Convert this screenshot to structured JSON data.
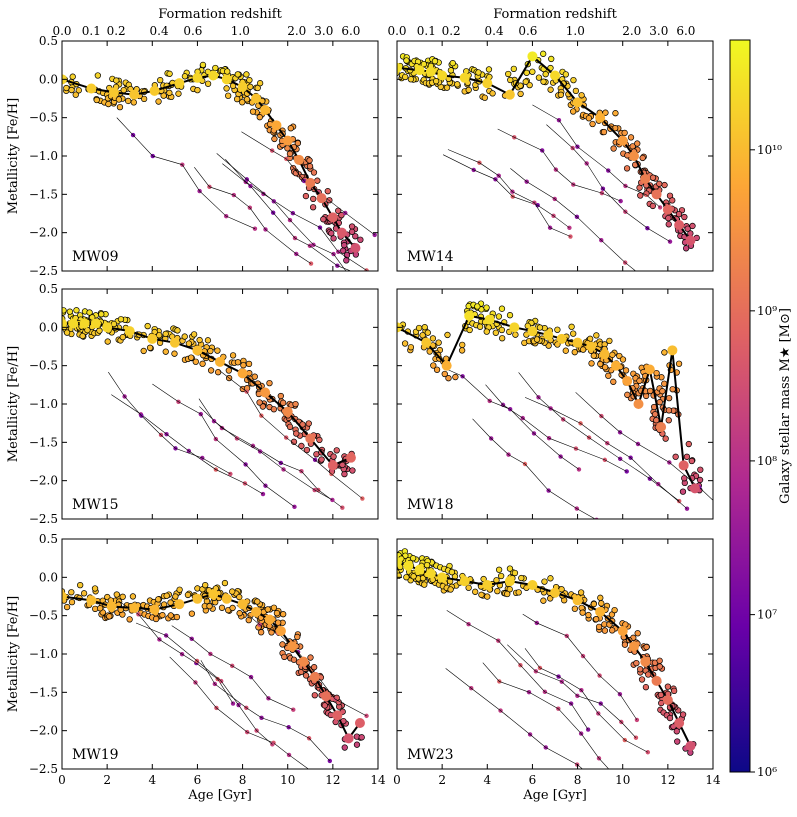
{
  "chart_data": [
    {
      "type": "scatter",
      "panel": "MW09",
      "label": "MW09",
      "xlim": [
        0,
        14
      ],
      "ylim": [
        -2.5,
        0.5
      ],
      "x": [
        0,
        1.3,
        2.3,
        3.2,
        4.1,
        5.2,
        6.0,
        6.7,
        7.3,
        8.0,
        8.6,
        9.0,
        9.5,
        10.0,
        10.5,
        11.0,
        11.5,
        12.0,
        12.4,
        13.0
      ],
      "y": [
        0.0,
        -0.12,
        -0.17,
        -0.2,
        -0.15,
        -0.05,
        0.02,
        0.05,
        0.0,
        -0.1,
        -0.25,
        -0.4,
        -0.6,
        -0.8,
        -1.05,
        -1.35,
        -1.55,
        -1.8,
        -2.0,
        -2.2
      ],
      "ylabel": "Metallicity [Fe/H]",
      "xlabel": "",
      "top_axis": "Formation redshift"
    },
    {
      "type": "scatter",
      "panel": "MW14",
      "label": "MW14",
      "xlim": [
        0,
        14
      ],
      "ylim": [
        -2.5,
        0.5
      ],
      "x": [
        0,
        1.0,
        1.5,
        2.0,
        3.0,
        4.0,
        5.0,
        6.0,
        7.0,
        8.0,
        9.0,
        10.0,
        10.5,
        11.0,
        11.5,
        12.0,
        12.5,
        13.0
      ],
      "y": [
        0.15,
        0.12,
        0.1,
        0.05,
        0.02,
        -0.05,
        -0.2,
        0.3,
        0.05,
        -0.3,
        -0.5,
        -0.8,
        -1.0,
        -1.3,
        -1.5,
        -1.7,
        -1.9,
        -2.1
      ],
      "ylabel": "",
      "xlabel": "",
      "top_axis": "Formation redshift"
    },
    {
      "type": "scatter",
      "panel": "MW15",
      "label": "MW15",
      "xlim": [
        0,
        14
      ],
      "ylim": [
        -2.5,
        0.5
      ],
      "x": [
        0,
        0.5,
        1.0,
        1.5,
        2.0,
        3.0,
        4.0,
        5.0,
        6.0,
        7.0,
        8.0,
        9.0,
        10.0,
        11.0,
        12.0,
        12.8
      ],
      "y": [
        0.05,
        0.05,
        0.05,
        0.05,
        0.0,
        -0.05,
        -0.15,
        -0.2,
        -0.3,
        -0.45,
        -0.6,
        -0.85,
        -1.1,
        -1.45,
        -1.8,
        -1.7
      ],
      "ylabel": "Metallicity [Fe/H]",
      "xlabel": "",
      "top_axis": ""
    },
    {
      "type": "scatter",
      "panel": "MW18",
      "label": "MW18",
      "xlim": [
        0,
        14
      ],
      "ylim": [
        -2.5,
        0.5
      ],
      "x": [
        0,
        1.3,
        2.2,
        3.2,
        4.1,
        5.2,
        6.0,
        6.7,
        7.3,
        8.0,
        8.6,
        9.2,
        9.7,
        10.2,
        10.7,
        11.2,
        11.7,
        12.2,
        12.7,
        13.2
      ],
      "y": [
        0.0,
        -0.2,
        -0.5,
        0.15,
        0.1,
        0.0,
        -0.05,
        -0.1,
        -0.15,
        -0.2,
        -0.25,
        -0.35,
        -0.5,
        -0.7,
        -1.0,
        -0.55,
        -1.3,
        -0.3,
        -1.8,
        -2.1
      ],
      "ylabel": "",
      "xlabel": "",
      "top_axis": ""
    },
    {
      "type": "scatter",
      "panel": "MW19",
      "label": "MW19",
      "xlim": [
        0,
        14
      ],
      "ylim": [
        -2.5,
        0.5
      ],
      "x": [
        0,
        1.3,
        2.2,
        3.2,
        4.1,
        5.2,
        6.0,
        6.7,
        7.3,
        8.0,
        8.6,
        9.2,
        9.7,
        10.2,
        10.7,
        11.2,
        11.7,
        12.2,
        12.7,
        13.2
      ],
      "y": [
        -0.25,
        -0.3,
        -0.38,
        -0.4,
        -0.42,
        -0.35,
        -0.28,
        -0.22,
        -0.28,
        -0.35,
        -0.45,
        -0.55,
        -0.7,
        -0.9,
        -1.1,
        -1.3,
        -1.55,
        -1.8,
        -2.1,
        -1.9
      ],
      "ylabel": "Metallicity [Fe/H]",
      "xlabel": "Age [Gyr]",
      "top_axis": ""
    },
    {
      "type": "scatter",
      "panel": "MW23",
      "label": "MW23",
      "xlim": [
        0,
        14
      ],
      "ylim": [
        -2.5,
        0.5
      ],
      "x": [
        0,
        0.5,
        1.0,
        1.5,
        2.0,
        3.0,
        4.0,
        5.0,
        6.0,
        7.0,
        8.0,
        9.0,
        10.0,
        10.5,
        11.0,
        11.5,
        12.0,
        12.5,
        13.0
      ],
      "y": [
        0.2,
        0.15,
        0.1,
        0.05,
        0.0,
        -0.05,
        -0.1,
        -0.05,
        -0.1,
        -0.2,
        -0.3,
        -0.45,
        -0.7,
        -0.9,
        -1.1,
        -1.35,
        -1.6,
        -1.9,
        -2.2
      ],
      "ylabel": "",
      "xlabel": "Age [Gyr]",
      "top_axis": ""
    }
  ],
  "axes": {
    "x_ticks": [
      "0",
      "2",
      "4",
      "6",
      "8",
      "10",
      "12",
      "14"
    ],
    "y_ticks": [
      "0.5",
      "0.0",
      "−0.5",
      "−1.0",
      "−1.5",
      "−2.0",
      "−2.5"
    ],
    "top_ticks": [
      "0.0",
      "0.1",
      "0.2",
      "0.4",
      "0.6",
      "1.0",
      "2.0",
      "3.0",
      "6.0"
    ],
    "top_tick_ages": [
      0,
      1.3,
      2.4,
      4.3,
      5.8,
      7.9,
      10.4,
      11.6,
      12.8
    ],
    "xlabel": "Age [Gyr]",
    "ylabel": "Metallicity [Fe/H]",
    "top_label": "Formation redshift"
  },
  "colorbar": {
    "label": "Galaxy stellar mass M★ [M⊙]",
    "ticks": [
      "10¹⁰",
      "10⁹",
      "10⁸",
      "10⁷",
      "10⁶"
    ],
    "colors": [
      "#fcfd28",
      "#fca636",
      "#e16462",
      "#b12a90",
      "#6a00a8",
      "#0d0887"
    ]
  }
}
